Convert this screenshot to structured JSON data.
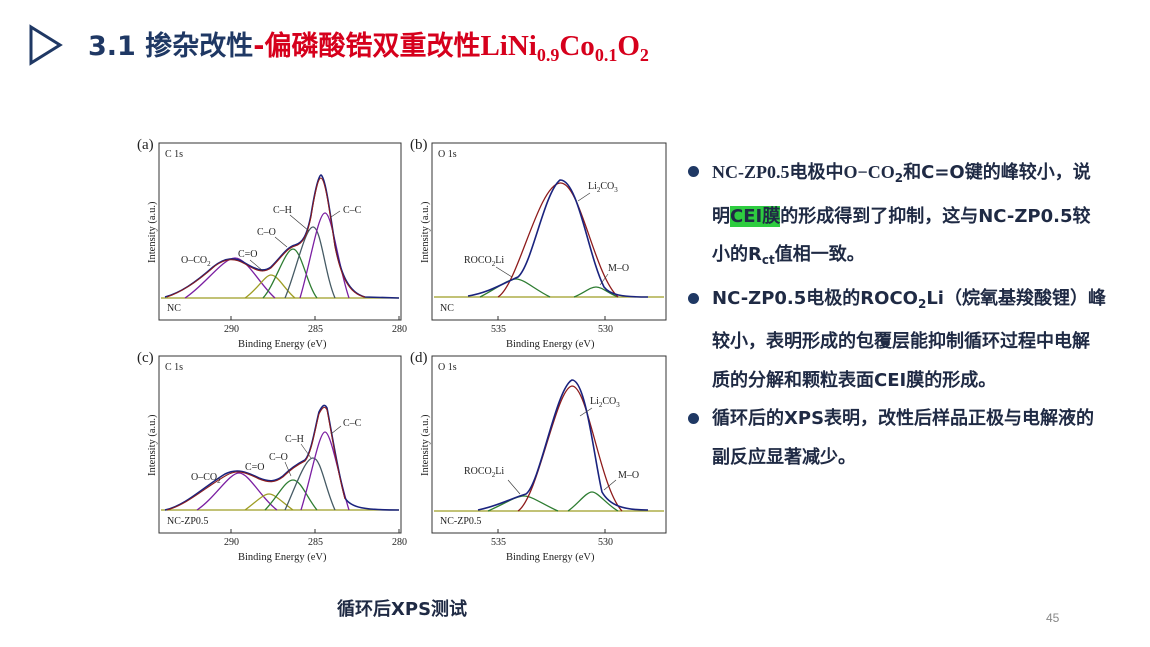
{
  "title": {
    "number": "3.1 ",
    "part1": "掺杂改性",
    "dash": "-",
    "part2": "偏磷酸锆双重改性",
    "formula_a": "LiNi",
    "formula_sub1": "0.9",
    "formula_b": "Co",
    "formula_sub2": "0.1",
    "formula_c": "O",
    "formula_sub3": "2"
  },
  "figure": {
    "x_axis_title": "Binding Energy (eV)",
    "y_axis_title": "Intensity (a.u.)",
    "panels": [
      {
        "letter": "(a)",
        "element": "C 1s",
        "sample": "NC",
        "ticks": [
          "290",
          "285",
          "280"
        ],
        "peaks": {
          "c_c": "C–C",
          "c_h": "C–H",
          "c_o": "C–O",
          "c_eq_o": "C=O",
          "o_co": "O–CO",
          "o_co_sub": "2"
        }
      },
      {
        "letter": "(b)",
        "element": "O 1s",
        "sample": "NC",
        "ticks": [
          "535",
          "530"
        ],
        "peaks": {
          "li2co3_a": "Li",
          "li2co3_sub": "2",
          "li2co3_b": "CO",
          "li2co3_sub2": "3",
          "roco2li_a": "ROCO",
          "roco2li_sub": "2",
          "roco2li_b": "Li",
          "m_o": "M–O"
        }
      },
      {
        "letter": "(c)",
        "element": "C 1s",
        "sample": "NC-ZP0.5",
        "ticks": [
          "290",
          "285",
          "280"
        ],
        "peaks": {
          "c_c": "C–C",
          "c_h": "C–H",
          "c_o": "C–O",
          "c_eq_o": "C=O",
          "o_co": "O–CO",
          "o_co_sub": "2"
        }
      },
      {
        "letter": "(d)",
        "element": "O 1s",
        "sample": "NC-ZP0.5",
        "ticks": [
          "535",
          "530"
        ],
        "peaks": {
          "li2co3_a": "Li",
          "li2co3_sub": "2",
          "li2co3_b": "CO",
          "li2co3_sub2": "3",
          "roco2li_a": "ROCO",
          "roco2li_sub": "2",
          "roco2li_b": "Li",
          "m_o": "M–O"
        }
      }
    ]
  },
  "caption": "循环后XPS测试",
  "page_number": "45",
  "bullets": [
    {
      "p1": "NC-ZP0.5电极中O−CO",
      "p1_sub": "2",
      "p2": "和C=O键的峰较小，说明",
      "hl": "CEI膜",
      "p3": "的形成得到了抑制，这与NC-ZP0.5较小的R",
      "p3_sub": "ct",
      "p4": "值相一致。"
    },
    {
      "p1": "NC-ZP0.5电极的ROCO",
      "p1_sub": "2",
      "p2": "Li（烷氧基羧酸锂）峰较小，表明形成的包覆层能抑制循环过程中电解质的分解和颗粒表面CEI膜的形成。"
    },
    {
      "p1": "循环后的XPS表明，改性后样品正极与电解液的副反应显著减少。"
    }
  ],
  "colors": {
    "title_navy": "#1f3864",
    "title_red": "#d6001c",
    "highlight": "#2ecc40",
    "envelope": "#1a237e",
    "fit": "#8e1b1b",
    "component_green": "#2e7d32",
    "component_purple": "#7b1fa2",
    "baseline": "#9e9d24"
  }
}
